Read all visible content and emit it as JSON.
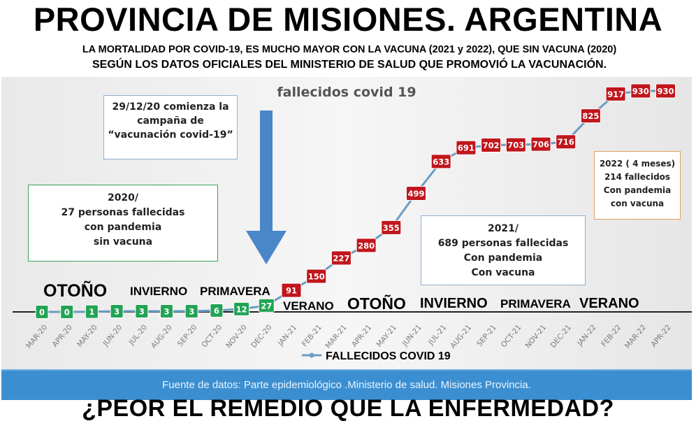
{
  "headline": "PROVINCIA DE MISIONES. ARGENTINA",
  "subheading_1": "LA MORTALIDAD POR COVID-19, ES MUCHO MAYOR CON LA VACUNA (2021 y 2022), QUE SIN VACUNA (2020)",
  "subheading_2": "SEGÚN LOS DATOS OFICIALES DEL MINISTERIO DE SALUD QUE PROMOVIÓ LA VACUNACIÓN.",
  "notes": {
    "campaign": [
      "29/12/20 comienza la",
      "campaña de",
      "“vacunación covid-19”"
    ],
    "y2020": [
      "2020/",
      "27 personas fallecidas",
      "con pandemia",
      "sin vacuna"
    ],
    "y2021": [
      "2021/",
      "689 personas fallecidas",
      "Con pandemia",
      "Con vacuna"
    ],
    "y2022": [
      "2022 ( 4 meses)",
      "214 fallecidos",
      "Con pandemia",
      "con vacuna"
    ]
  },
  "seasons": {
    "otono_1": "OTOÑO",
    "invierno_1": "INVIERNO",
    "primavera_1": "PRIMAVERA",
    "verano_1": "VERANO",
    "otono_2": "OTOÑO",
    "invierno_2": "INVIERNO",
    "primavera_2": "PRIMAVERA",
    "verano_2": "VERANO"
  },
  "source": "Fuente de datos: Parte epidemiológico  .Ministerio de salud. Misiones Provincia.",
  "footer": "¿PEOR EL REMEDIO QUE LA ENFERMEDAD?",
  "colors": {
    "green": "#23a455",
    "red": "#c0161c",
    "line": "#6b9cc2",
    "arrow": "#4a87c8",
    "source_bar": "#3b8fd1"
  },
  "chart_data": {
    "type": "line",
    "title": "fallecidos covid 19",
    "categories": [
      "MAR-20",
      "APR-20",
      "MAY-20",
      "JUN-20",
      "JUL-20",
      "AUG-20",
      "SEP-20",
      "OCT-20",
      "NOV-20",
      "DEC-20",
      "JAN-21",
      "FEB-21",
      "MAR-21",
      "APR-21",
      "MAY-21",
      "JUN-21",
      "JUL-21",
      "AUG-21",
      "SEP-21",
      "OCT-21",
      "NOV-21",
      "DEC-21",
      "JAN-22",
      "FEB-22",
      "MAR-22",
      "APR-22"
    ],
    "series": [
      {
        "name": "FALLECIDOS COVID 19",
        "values": [
          0,
          0,
          1,
          3,
          3,
          3,
          3,
          6,
          12,
          27,
          91,
          150,
          227,
          280,
          355,
          499,
          633,
          691,
          702,
          703,
          706,
          716,
          825,
          917,
          930,
          930
        ]
      }
    ],
    "legend": "bottom-center",
    "grid": false
  }
}
